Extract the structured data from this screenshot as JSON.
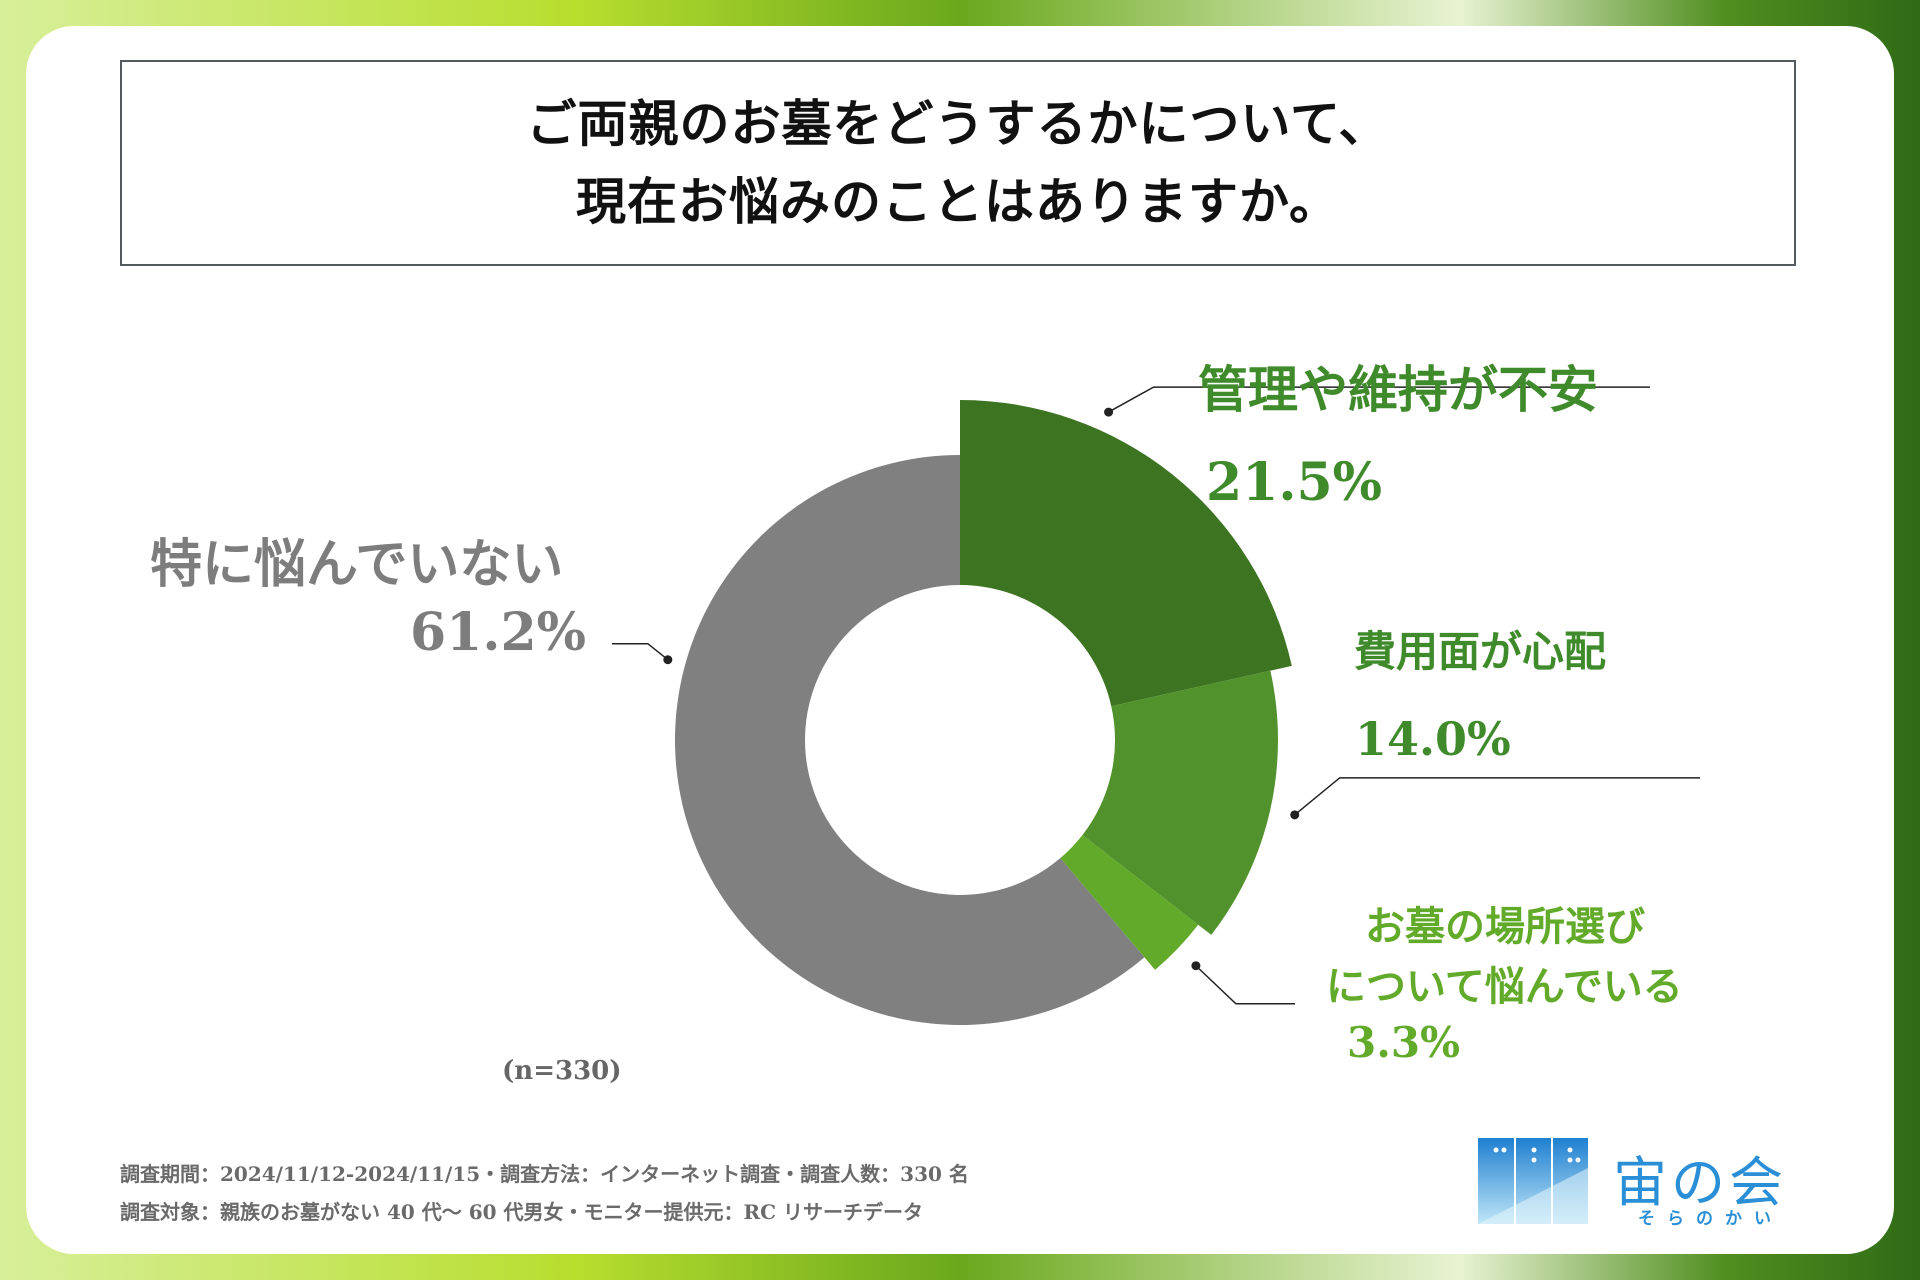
{
  "title": {
    "line1": "ご両親のお墓をどうするかについて、",
    "line2": "現在お悩みのことはありますか。"
  },
  "colors": {
    "gray": "#808080",
    "dark_green": "#3d7422",
    "mid_green": "#52922c",
    "light_green": "#62aa2a",
    "gray_text": "#7d7d7d",
    "green_text": "#3f8a2a"
  },
  "chart_data": {
    "type": "pie",
    "variant": "donut",
    "sample": "(n=330)",
    "slices": [
      {
        "label": "管理や維持が不安",
        "value": 21.5,
        "value_label": "21.5%",
        "color": "#3d7422",
        "emphasis": 1.0
      },
      {
        "label": "費用面が心配",
        "value": 14.0,
        "value_label": "14.0%",
        "color": "#52922c",
        "emphasis": 0.6
      },
      {
        "label_lines": [
          "お墓の場所選び",
          "について悩んでいる"
        ],
        "value": 3.3,
        "value_label": "3.3%",
        "color": "#62aa2a",
        "emphasis": 0.3
      },
      {
        "label": "特に悩んでいない",
        "value": 61.2,
        "value_label": "61.2%",
        "color": "#808080",
        "emphasis": 0
      }
    ]
  },
  "footer": {
    "line1": "調査期間：2024/11/12-2024/11/15・調査方法：インターネット調査・調査人数：330 名",
    "line2": "調査対象：親族のお墓がない 40 代〜 60 代男女・モニター提供元：RC リサーチデータ"
  },
  "logo": {
    "name": "宙の会",
    "reading": "そらのかい"
  }
}
